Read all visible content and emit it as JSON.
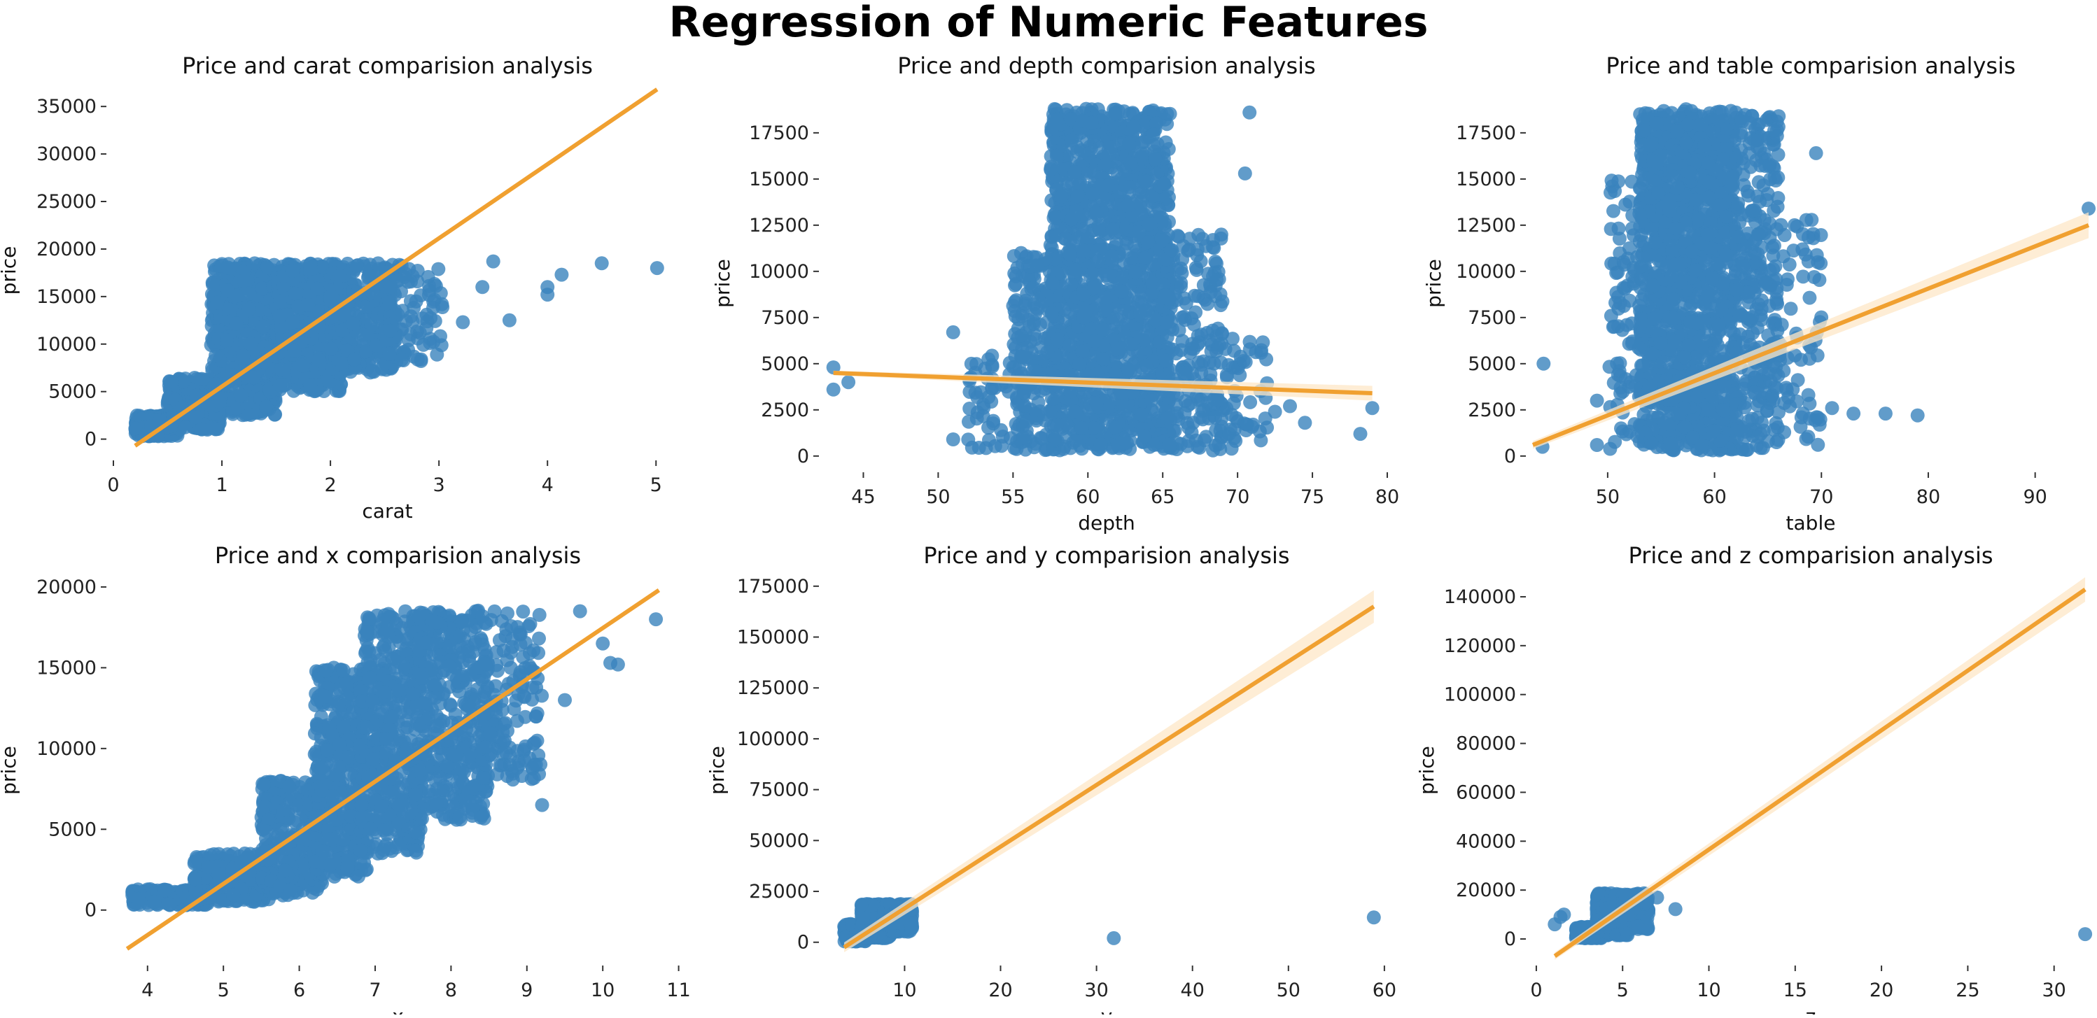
{
  "figure": {
    "title": "Regression of Numeric Features"
  },
  "colors": {
    "points": "#3a83bd",
    "line": "#f0a030",
    "band": "#fde7c7"
  },
  "chart_data": [
    {
      "type": "scatter",
      "title": "Price and carat comparision analysis",
      "xlabel": "carat",
      "ylabel": "price",
      "xlim": [
        0,
        5.05
      ],
      "ylim": [
        -1500,
        37000
      ],
      "xticks": [
        0,
        1,
        2,
        3,
        4,
        5
      ],
      "yticks": [
        0,
        5000,
        10000,
        15000,
        20000,
        25000,
        30000,
        35000
      ],
      "clusters": [
        {
          "x": [
            0.2,
            0.6
          ],
          "y": [
            300,
            2500
          ],
          "n": 250
        },
        {
          "x": [
            0.5,
            1.0
          ],
          "y": [
            1000,
            6500
          ],
          "n": 350
        },
        {
          "x": [
            0.9,
            1.5
          ],
          "y": [
            2500,
            18500
          ],
          "n": 650
        },
        {
          "x": [
            1.5,
            2.1
          ],
          "y": [
            5000,
            18500
          ],
          "n": 550
        },
        {
          "x": [
            2.0,
            2.6
          ],
          "y": [
            7000,
            18500
          ],
          "n": 350
        },
        {
          "x": [
            2.5,
            3.05
          ],
          "y": [
            8000,
            18500
          ],
          "n": 90
        }
      ],
      "outliers": [
        [
          3.5,
          18700
        ],
        [
          4.0,
          15200
        ],
        [
          4.13,
          17300
        ],
        [
          4.5,
          18500
        ],
        [
          5.01,
          18000
        ],
        [
          3.65,
          12500
        ],
        [
          3.4,
          16000
        ],
        [
          4.0,
          16000
        ],
        [
          3.22,
          12300
        ]
      ],
      "regression": {
        "x": [
          0.2,
          5.01
        ],
        "y": [
          -700,
          36800
        ],
        "band": 0
      }
    },
    {
      "type": "scatter",
      "title": "Price and depth comparision analysis",
      "xlabel": "depth",
      "ylabel": "price",
      "xlim": [
        42.5,
        80
      ],
      "ylim": [
        -500,
        19200
      ],
      "xticks": [
        45,
        50,
        55,
        60,
        65,
        70,
        75,
        80
      ],
      "yticks": [
        0,
        2500,
        5000,
        7500,
        10000,
        12500,
        15000,
        17500
      ],
      "clusters": [
        {
          "x": [
            57.5,
            65.5
          ],
          "y": [
            300,
            18800
          ],
          "n": 1600
        },
        {
          "x": [
            55,
            58
          ],
          "y": [
            300,
            11000
          ],
          "n": 200
        },
        {
          "x": [
            65,
            69
          ],
          "y": [
            300,
            12000
          ],
          "n": 200
        },
        {
          "x": [
            52,
            56
          ],
          "y": [
            300,
            5500
          ],
          "n": 60
        },
        {
          "x": [
            68,
            72
          ],
          "y": [
            300,
            6500
          ],
          "n": 60
        }
      ],
      "outliers": [
        [
          43,
          4800
        ],
        [
          43,
          3600
        ],
        [
          44,
          4000
        ],
        [
          51,
          6700
        ],
        [
          51,
          900
        ],
        [
          70.8,
          18600
        ],
        [
          70.5,
          15300
        ],
        [
          78.2,
          1200
        ],
        [
          79,
          2600
        ],
        [
          72.5,
          2400
        ],
        [
          73.5,
          2700
        ],
        [
          74.5,
          1800
        ]
      ],
      "regression": {
        "x": [
          43,
          79
        ],
        "y": [
          4500,
          3400
        ],
        "band": 400
      }
    },
    {
      "type": "scatter",
      "title": "Price and table comparision analysis",
      "xlabel": "table",
      "ylabel": "price",
      "xlim": [
        43,
        95
      ],
      "ylim": [
        -500,
        19200
      ],
      "xticks": [
        50,
        60,
        70,
        80,
        90
      ],
      "yticks": [
        0,
        2500,
        5000,
        7500,
        10000,
        12500,
        15000,
        17500
      ],
      "clusters": [
        {
          "x": [
            53,
            62
          ],
          "y": [
            300,
            18800
          ],
          "n": 1500
        },
        {
          "x": [
            62,
            66
          ],
          "y": [
            300,
            18500
          ],
          "n": 300
        },
        {
          "x": [
            50,
            53
          ],
          "y": [
            300,
            15000
          ],
          "n": 80
        },
        {
          "x": [
            66,
            70
          ],
          "y": [
            300,
            13000
          ],
          "n": 70
        }
      ],
      "outliers": [
        [
          44,
          5000
        ],
        [
          43.9,
          500
        ],
        [
          49,
          600
        ],
        [
          49,
          3000
        ],
        [
          69.5,
          16400
        ],
        [
          71,
          2600
        ],
        [
          73,
          2300
        ],
        [
          76,
          2300
        ],
        [
          79,
          2200
        ],
        [
          95,
          13400
        ],
        [
          66,
          18400
        ]
      ],
      "regression": {
        "x": [
          43,
          95
        ],
        "y": [
          600,
          12500
        ],
        "band": 700
      }
    },
    {
      "type": "scatter",
      "title": "Price and x comparision analysis",
      "xlabel": "x",
      "ylabel": "price",
      "xlim": [
        3.55,
        11.05
      ],
      "ylim": [
        -3000,
        20300
      ],
      "xticks": [
        4,
        5,
        6,
        7,
        8,
        9,
        10,
        11
      ],
      "yticks": [
        0,
        5000,
        10000,
        15000,
        20000
      ],
      "clusters": [
        {
          "x": [
            3.8,
            4.8
          ],
          "y": [
            300,
            1300
          ],
          "n": 200
        },
        {
          "x": [
            4.6,
            5.6
          ],
          "y": [
            500,
            3500
          ],
          "n": 250
        },
        {
          "x": [
            5.5,
            6.3
          ],
          "y": [
            900,
            8000
          ],
          "n": 350
        },
        {
          "x": [
            6.2,
            6.9
          ],
          "y": [
            2000,
            15000
          ],
          "n": 450
        },
        {
          "x": [
            6.8,
            7.6
          ],
          "y": [
            3500,
            18500
          ],
          "n": 500
        },
        {
          "x": [
            7.5,
            8.5
          ],
          "y": [
            5500,
            18600
          ],
          "n": 450
        },
        {
          "x": [
            8.4,
            9.2
          ],
          "y": [
            8000,
            18600
          ],
          "n": 150
        }
      ],
      "outliers": [
        [
          9.7,
          18500
        ],
        [
          10.0,
          16500
        ],
        [
          10.1,
          15300
        ],
        [
          10.2,
          15200
        ],
        [
          10.7,
          18000
        ],
        [
          9.2,
          6500
        ],
        [
          9.5,
          13000
        ],
        [
          9.1,
          9000
        ],
        [
          5.8,
          6200
        ]
      ],
      "regression": {
        "x": [
          3.73,
          10.74
        ],
        "y": [
          -2400,
          19800
        ],
        "band": 0
      }
    },
    {
      "type": "scatter",
      "title": "Price and y comparision analysis",
      "xlabel": "y",
      "ylabel": "price",
      "xlim": [
        1.8,
        60.3
      ],
      "ylim": [
        -8000,
        177000
      ],
      "xticks": [
        10,
        20,
        30,
        40,
        50,
        60
      ],
      "yticks": [
        0,
        25000,
        50000,
        75000,
        100000,
        125000,
        150000,
        175000
      ],
      "clusters": [
        {
          "x": [
            3.7,
            6
          ],
          "y": [
            300,
            9000
          ],
          "n": 250
        },
        {
          "x": [
            5.5,
            8.5
          ],
          "y": [
            2000,
            18800
          ],
          "n": 550
        },
        {
          "x": [
            8.5,
            10.8
          ],
          "y": [
            5000,
            18800
          ],
          "n": 200
        }
      ],
      "outliers": [
        [
          31.8,
          2000
        ],
        [
          58.9,
          12200
        ]
      ],
      "regression": {
        "x": [
          3.7,
          58.9
        ],
        "y": [
          -2500,
          165000
        ],
        "band": 8000
      }
    },
    {
      "type": "scatter",
      "title": "Price and z comparision analysis",
      "xlabel": "z",
      "ylabel": "price",
      "xlim": [
        -0.2,
        32
      ],
      "ylim": [
        -8000,
        146000
      ],
      "xticks": [
        0,
        5,
        10,
        15,
        20,
        25,
        30
      ],
      "yticks": [
        0,
        20000,
        40000,
        60000,
        80000,
        100000,
        120000,
        140000
      ],
      "clusters": [
        {
          "x": [
            2.3,
            3.8
          ],
          "y": [
            300,
            5000
          ],
          "n": 200
        },
        {
          "x": [
            3.5,
            5.3
          ],
          "y": [
            1500,
            18800
          ],
          "n": 550
        },
        {
          "x": [
            5.0,
            6.5
          ],
          "y": [
            4000,
            18800
          ],
          "n": 200
        }
      ],
      "outliers": [
        [
          1.07,
          6000
        ],
        [
          1.4,
          9000
        ],
        [
          1.6,
          10000
        ],
        [
          8.06,
          12200
        ],
        [
          31.8,
          2000
        ],
        [
          7.0,
          17000
        ]
      ],
      "regression": {
        "x": [
          1.07,
          31.8
        ],
        "y": [
          -7000,
          143000
        ],
        "band": 5000
      }
    }
  ]
}
